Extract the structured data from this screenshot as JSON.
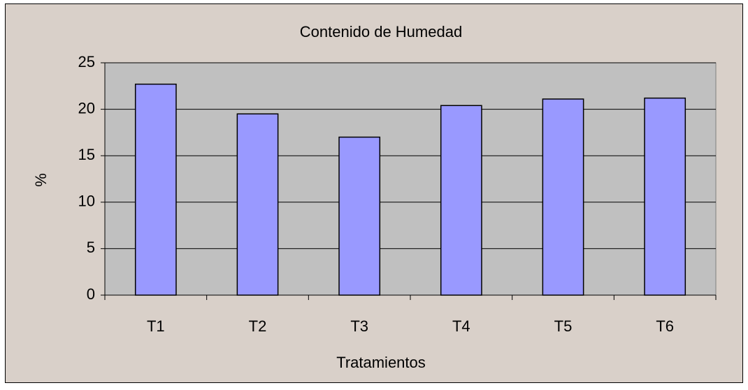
{
  "chart_data": {
    "type": "bar",
    "title": "Contenido de Humedad",
    "x_label": "Tratamientos",
    "y_label": "%",
    "categories": [
      "T1",
      "T2",
      "T3",
      "T4",
      "T5",
      "T6"
    ],
    "values": [
      22.7,
      19.5,
      17.0,
      20.4,
      21.1,
      21.2
    ],
    "color": "#9999ff",
    "ylim": [
      0,
      25
    ],
    "yticks": [
      0,
      5,
      10,
      15,
      20,
      25
    ],
    "grid": true
  }
}
